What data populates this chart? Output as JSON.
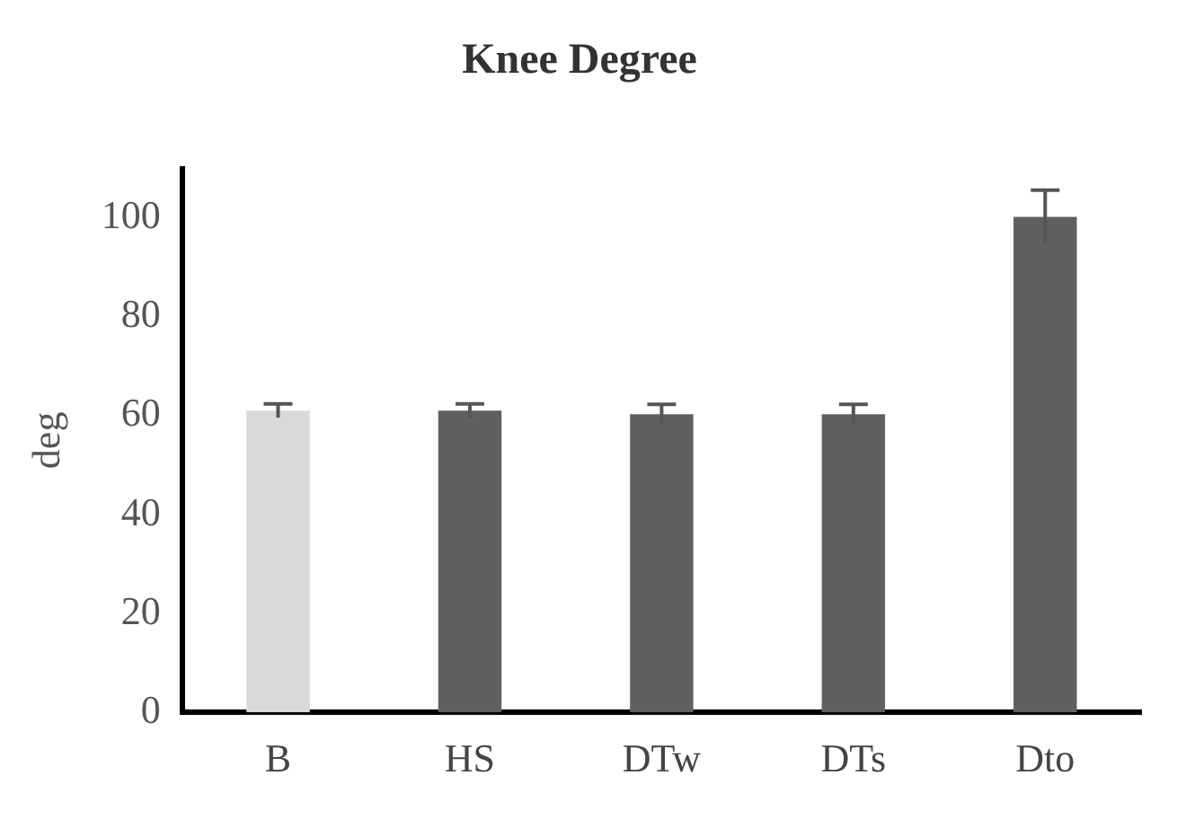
{
  "chart_data": {
    "type": "bar",
    "title": "Knee Degree",
    "ylabel": "deg",
    "categories": [
      "B",
      "HS",
      "DTw",
      "DTs",
      "Dto"
    ],
    "values": [
      61,
      61,
      60.3,
      60.3,
      100.2
    ],
    "errors": [
      1.4,
      1.4,
      2,
      2,
      5.4
    ],
    "colors": [
      "#d9d9d9",
      "#606060",
      "#606060",
      "#606060",
      "#606060"
    ],
    "ylim": [
      0,
      110
    ],
    "yticks": [
      0,
      20,
      40,
      60,
      80,
      100
    ],
    "grid": false,
    "legend": false
  }
}
